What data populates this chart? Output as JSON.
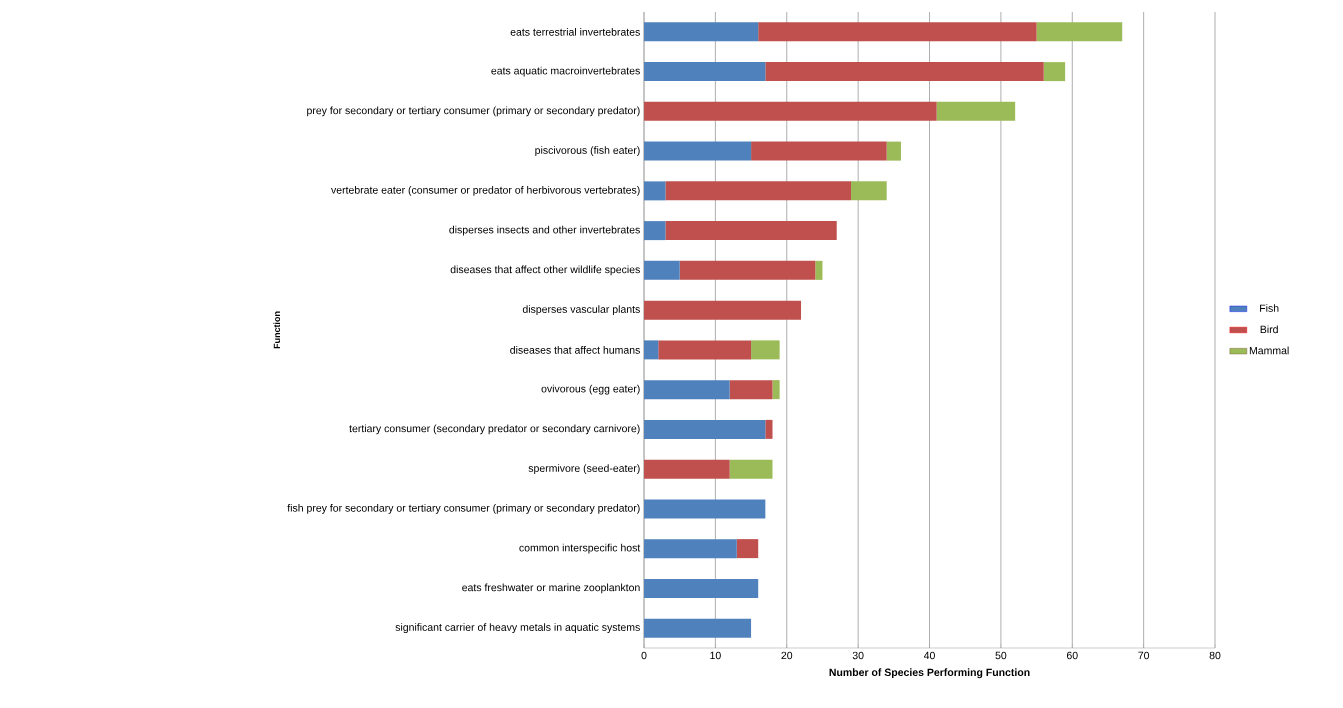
{
  "chart_data": {
    "type": "bar",
    "orientation": "horizontal",
    "stacked": true,
    "xlabel": "Number of Species Performing Function",
    "ylabel": "Function",
    "categories": [
      "eats terrestrial invertebrates",
      "eats aquatic macroinvertebrates",
      "prey for secondary or tertiary consumer (primary or secondary predator)",
      "piscivorous (fish eater)",
      "vertebrate eater (consumer or predator of herbivorous vertebrates)",
      "disperses insects and other invertebrates",
      "diseases that affect other wildlife species",
      "disperses vascular plants",
      "diseases that affect humans",
      "ovivorous (egg eater)",
      "tertiary consumer (secondary predator or secondary carnivore)",
      "spermivore (seed-eater)",
      "fish prey for secondary or tertiary consumer (primary or secondary predator)",
      "common interspecific host",
      "eats freshwater or marine zooplankton",
      "significant carrier of heavy metals in aquatic systems"
    ],
    "series": [
      {
        "name": "Fish",
        "color": "#4f81bd",
        "values": [
          16,
          17,
          0,
          15,
          3,
          3,
          5,
          0,
          2,
          12,
          17,
          0,
          17,
          13,
          16,
          15
        ]
      },
      {
        "name": "Bird",
        "color": "#c0504d",
        "values": [
          39,
          39,
          41,
          19,
          26,
          24,
          19,
          22,
          13,
          6,
          1,
          12,
          0,
          3,
          0,
          0
        ]
      },
      {
        "name": "Mammal",
        "color": "#9bbb59",
        "values": [
          12,
          3,
          11,
          2,
          5,
          0,
          1,
          0,
          4,
          1,
          0,
          6,
          0,
          0,
          0,
          0
        ]
      }
    ],
    "xlim": [
      0,
      80
    ],
    "xticks": [
      0,
      10,
      20,
      30,
      40,
      50,
      60,
      70,
      80
    ],
    "grid": "x",
    "legend": "right"
  }
}
